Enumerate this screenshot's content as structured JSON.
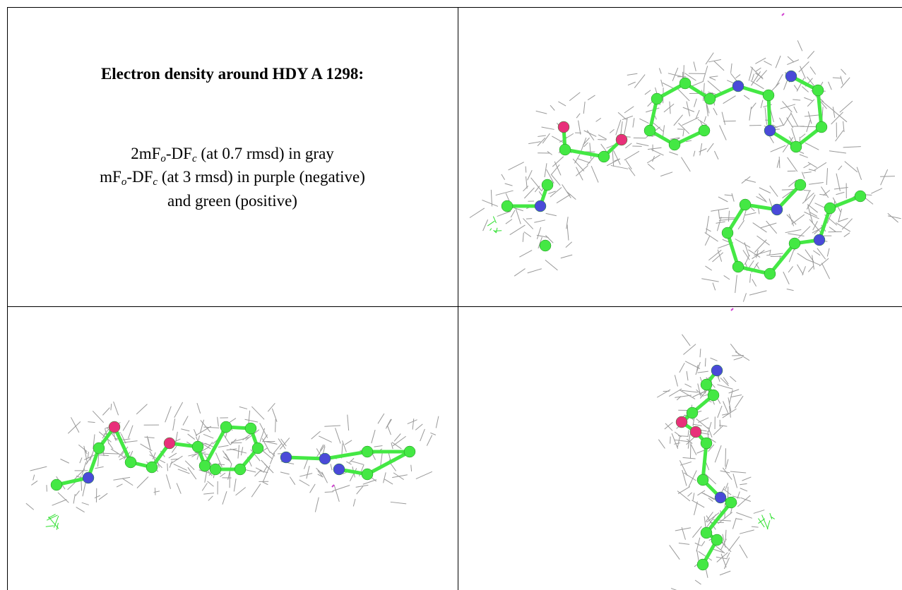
{
  "caption": {
    "title": "Electron density around HDY A 1298:",
    "line1": [
      "2mF",
      "o",
      "-DF",
      "c",
      " (at 0.7 rmsd) in gray"
    ],
    "line2": [
      "mF",
      "o",
      "-DF",
      "c",
      " (at 3 rmsd) in purple (negative)"
    ],
    "line3": "and green (positive)"
  }
}
